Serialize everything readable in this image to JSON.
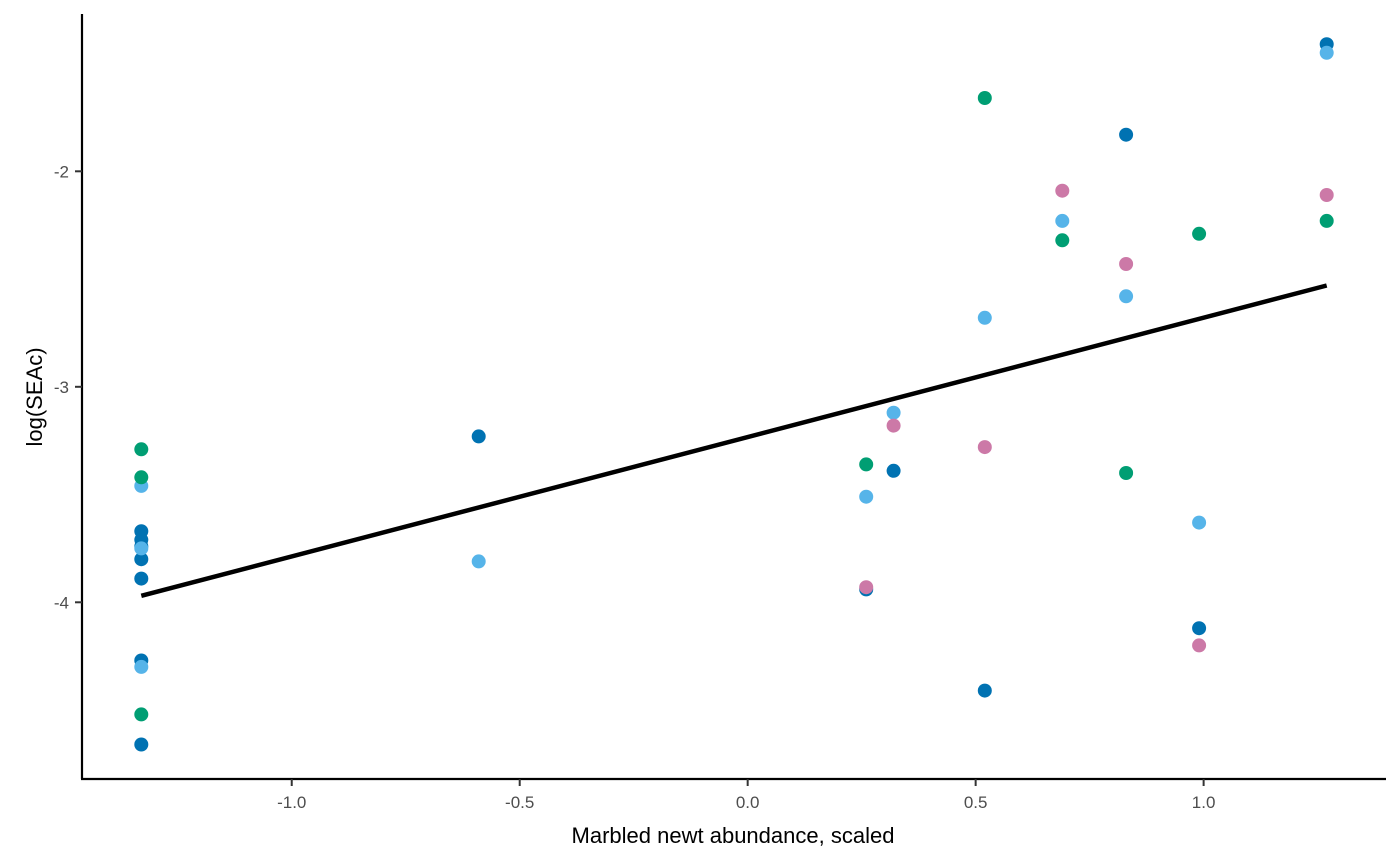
{
  "chart_data": {
    "type": "scatter",
    "title": "",
    "xlabel": "Marbled newt abundance, scaled",
    "ylabel": "log(SEAc)",
    "xlim": [
      -1.46,
      1.4
    ],
    "ylim": [
      -4.82,
      -1.27
    ],
    "x_ticks": [
      -1.0,
      -0.5,
      0.0,
      0.5,
      1.0
    ],
    "x_tick_labels": [
      "-1.0",
      "-0.5",
      "0.0",
      "0.5",
      "1.0"
    ],
    "y_ticks": [
      -4,
      -3,
      -2
    ],
    "y_tick_labels": [
      "-4",
      "-3",
      "-2"
    ],
    "grid": false,
    "legend": "none",
    "series": [
      {
        "color": "#0072B2",
        "points": [
          [
            -1.33,
            -3.67
          ],
          [
            -1.33,
            -3.71
          ],
          [
            -1.33,
            -3.74
          ],
          [
            -1.33,
            -3.8
          ],
          [
            -1.33,
            -3.89
          ],
          [
            -1.33,
            -4.27
          ],
          [
            -1.33,
            -4.66
          ],
          [
            -0.59,
            -3.23
          ],
          [
            0.26,
            -3.94
          ],
          [
            0.32,
            -3.39
          ],
          [
            0.52,
            -4.41
          ],
          [
            0.83,
            -1.83
          ],
          [
            0.99,
            -4.12
          ],
          [
            1.27,
            -1.41
          ]
        ]
      },
      {
        "color": "#56B4E9",
        "points": [
          [
            -1.33,
            -3.46
          ],
          [
            -1.33,
            -3.75
          ],
          [
            -1.33,
            -4.3
          ],
          [
            -0.59,
            -3.81
          ],
          [
            0.26,
            -3.51
          ],
          [
            0.32,
            -3.12
          ],
          [
            0.52,
            -2.68
          ],
          [
            0.69,
            -2.23
          ],
          [
            0.83,
            -2.58
          ],
          [
            0.99,
            -3.63
          ],
          [
            1.27,
            -1.45
          ]
        ]
      },
      {
        "color": "#009E73",
        "points": [
          [
            -1.33,
            -3.29
          ],
          [
            -1.33,
            -3.42
          ],
          [
            -1.33,
            -4.52
          ],
          [
            0.26,
            -3.36
          ],
          [
            0.52,
            -1.66
          ],
          [
            0.69,
            -2.32
          ],
          [
            0.83,
            -3.4
          ],
          [
            0.99,
            -2.29
          ],
          [
            1.27,
            -2.23
          ]
        ]
      },
      {
        "color": "#CC79A7",
        "points": [
          [
            0.26,
            -3.93
          ],
          [
            0.32,
            -3.18
          ],
          [
            0.52,
            -3.28
          ],
          [
            0.69,
            -2.09
          ],
          [
            0.83,
            -2.43
          ],
          [
            0.99,
            -4.2
          ],
          [
            1.27,
            -2.11
          ]
        ]
      }
    ],
    "trend_line": {
      "x": [
        -1.33,
        1.27
      ],
      "y": [
        -3.97,
        -2.53
      ],
      "color": "#000000"
    }
  }
}
